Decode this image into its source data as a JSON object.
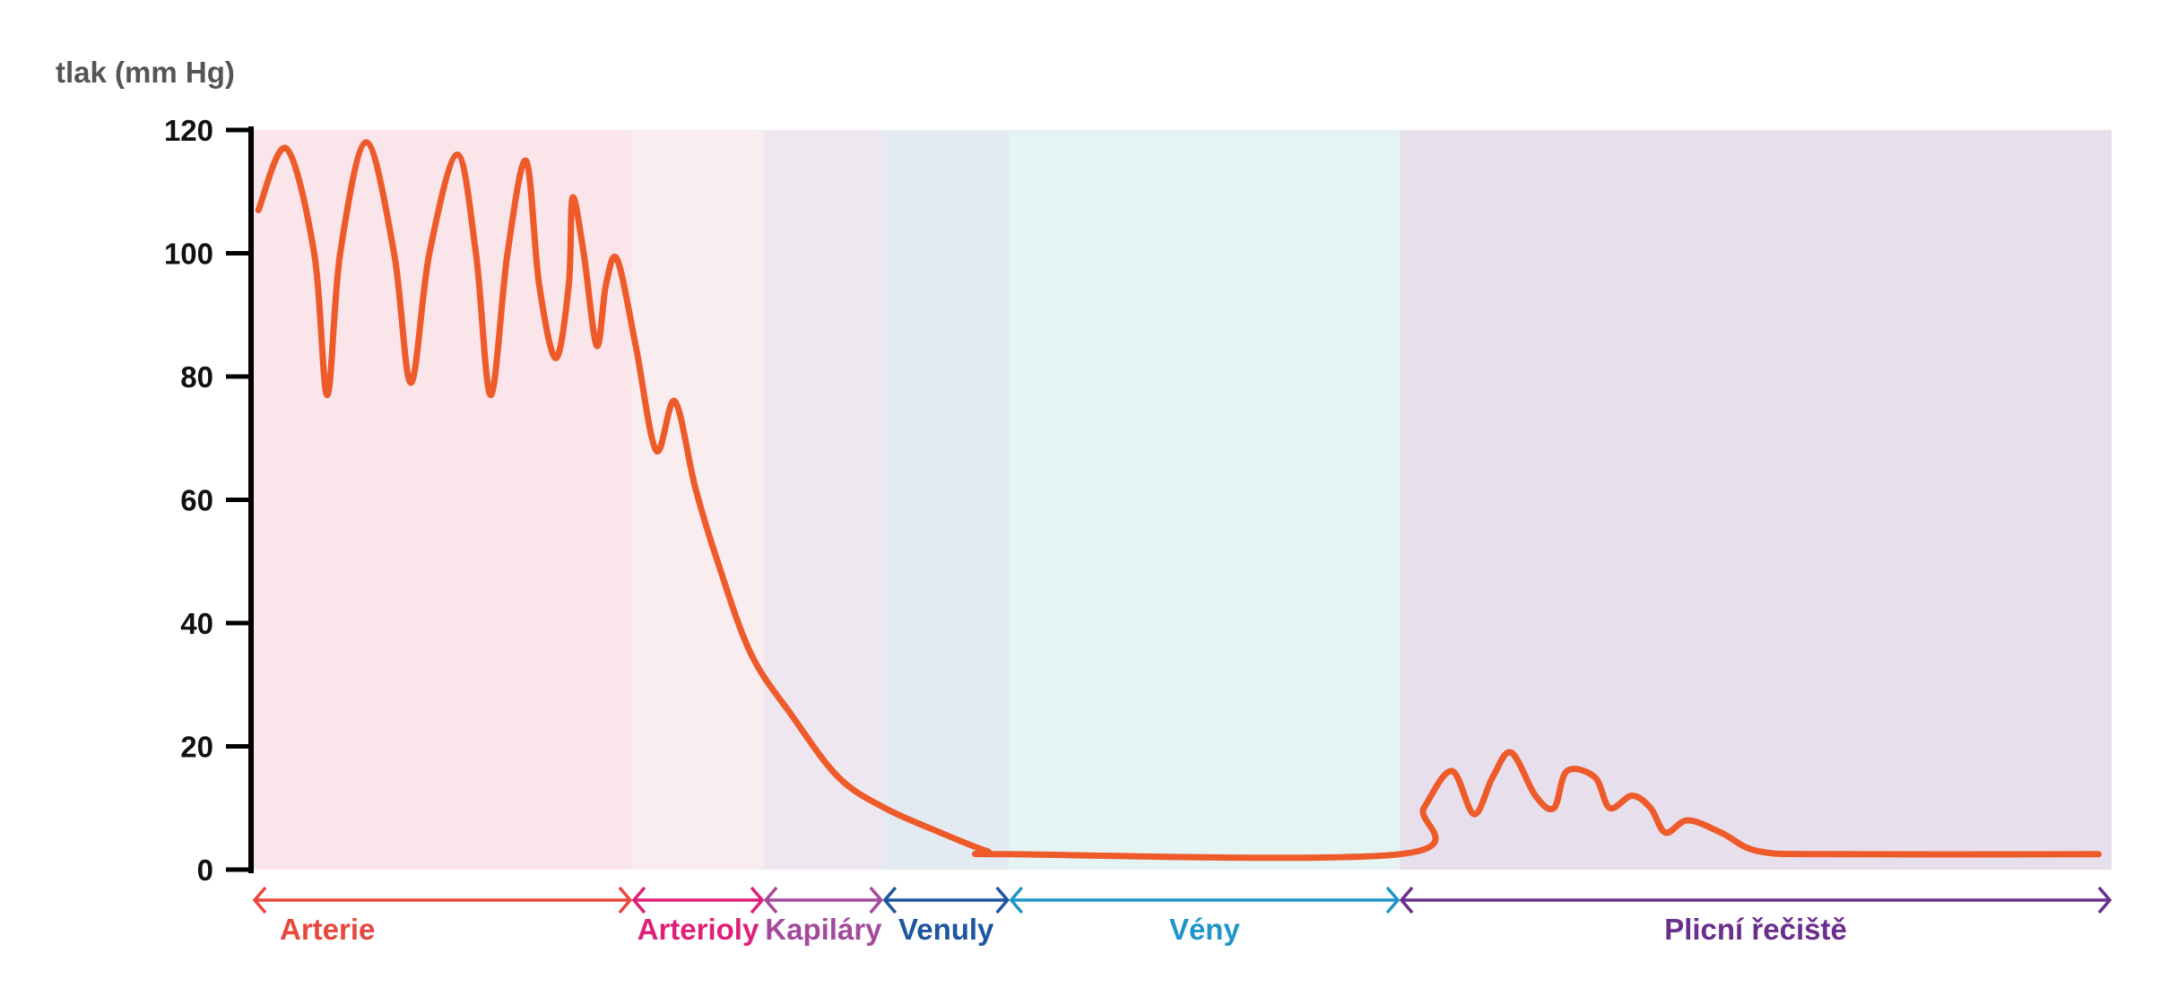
{
  "chart_data": {
    "type": "line",
    "ylabel": "tlak (mm Hg)",
    "xlabel": "",
    "title": "",
    "ylim": [
      0,
      120
    ],
    "yticks": [
      0,
      20,
      40,
      60,
      80,
      100,
      120
    ],
    "grid": false,
    "line_color": "#ee5a2a",
    "regions": [
      {
        "name": "Arterie",
        "span": [
          0.0,
          0.204
        ],
        "band_color": "#f9e5ea",
        "label_color": "#e8473c"
      },
      {
        "name": "Arterioly",
        "span": [
          0.204,
          0.275
        ],
        "band_color": "#f9edf0",
        "label_color": "#df1f79"
      },
      {
        "name": "Kapiláry",
        "span": [
          0.275,
          0.339
        ],
        "band_color": "#efe7ef",
        "label_color": "#a44a9c"
      },
      {
        "name": "Venuly",
        "span": [
          0.339,
          0.407
        ],
        "band_color": "#e3eaf1",
        "label_color": "#1d55a0"
      },
      {
        "name": "Vény",
        "span": [
          0.407,
          0.617
        ],
        "band_color": "#e5f3f2",
        "label_color": "#1f96c8"
      },
      {
        "name": "Plicní řečiště",
        "span": [
          0.617,
          1.0
        ],
        "band_color": "#e7e0ec",
        "label_color": "#6a2e8c"
      }
    ],
    "series": [
      {
        "points": [
          [
            0.003,
            107
          ],
          [
            0.018,
            117
          ],
          [
            0.033,
            100
          ],
          [
            0.04,
            77
          ],
          [
            0.047,
            100
          ],
          [
            0.061,
            118
          ],
          [
            0.076,
            100
          ],
          [
            0.085,
            79
          ],
          [
            0.095,
            100
          ],
          [
            0.11,
            116
          ],
          [
            0.12,
            100
          ],
          [
            0.128,
            77
          ],
          [
            0.137,
            100
          ],
          [
            0.147,
            115
          ],
          [
            0.154,
            95
          ],
          [
            0.163,
            83
          ],
          [
            0.17,
            95
          ],
          [
            0.172,
            109
          ],
          [
            0.178,
            100
          ],
          [
            0.185,
            85
          ],
          [
            0.19,
            95
          ],
          [
            0.196,
            99
          ],
          [
            0.206,
            85
          ],
          [
            0.217,
            68
          ],
          [
            0.227,
            76
          ],
          [
            0.238,
            62
          ],
          [
            0.25,
            50
          ],
          [
            0.268,
            35
          ],
          [
            0.29,
            25
          ],
          [
            0.315,
            15
          ],
          [
            0.34,
            10
          ],
          [
            0.37,
            6
          ],
          [
            0.395,
            3
          ],
          [
            0.407,
            2.5
          ],
          [
            0.617,
            2.5
          ],
          [
            0.63,
            10
          ],
          [
            0.645,
            16
          ],
          [
            0.657,
            9
          ],
          [
            0.667,
            15
          ],
          [
            0.677,
            19
          ],
          [
            0.69,
            12
          ],
          [
            0.7,
            10
          ],
          [
            0.707,
            16
          ],
          [
            0.722,
            15
          ],
          [
            0.73,
            10
          ],
          [
            0.742,
            12
          ],
          [
            0.752,
            10
          ],
          [
            0.76,
            6
          ],
          [
            0.772,
            8
          ],
          [
            0.79,
            6
          ],
          [
            0.81,
            3
          ],
          [
            0.85,
            2.5
          ],
          [
            0.993,
            2.5
          ]
        ]
      }
    ]
  }
}
